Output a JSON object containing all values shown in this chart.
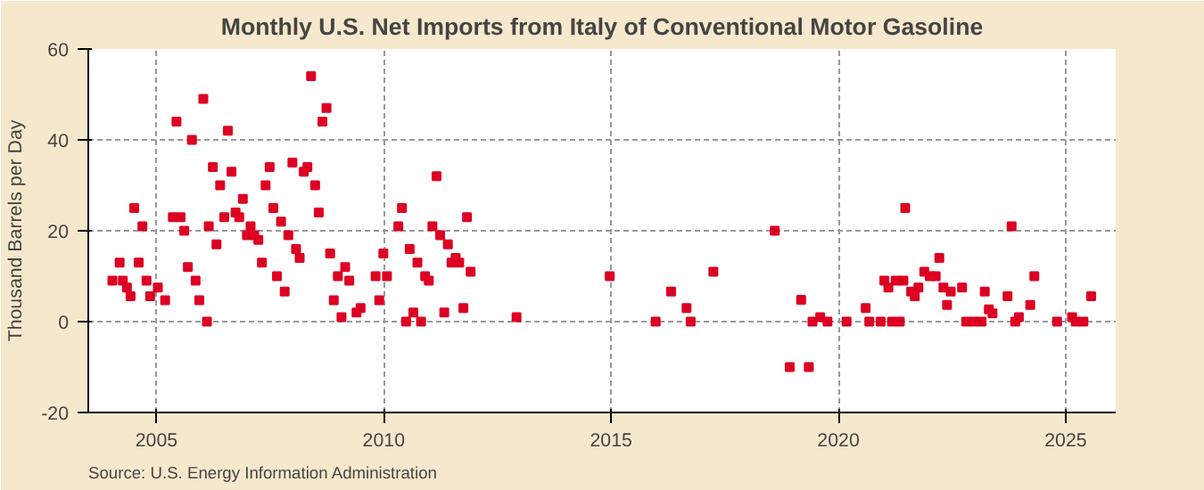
{
  "chart_data": {
    "type": "scatter",
    "title": "Monthly U.S. Net Imports from Italy of Conventional Motor Gasoline",
    "ylabel": "Thousand Barrels per Day",
    "annotations": [
      "Source: U.S. Energy Information Administration"
    ],
    "x": [
      2004.03,
      2004.19,
      2004.26,
      2004.35,
      2004.43,
      2004.51,
      2004.61,
      2004.69,
      2004.78,
      2004.86,
      2005.03,
      2005.19,
      2005.36,
      2005.44,
      2005.53,
      2005.61,
      2005.69,
      2005.78,
      2005.86,
      2005.94,
      2006.03,
      2006.11,
      2006.15,
      2006.24,
      2006.32,
      2006.4,
      2006.49,
      2006.57,
      2006.65,
      2006.74,
      2006.82,
      2006.9,
      2006.99,
      2007.07,
      2007.15,
      2007.24,
      2007.32,
      2007.4,
      2007.49,
      2007.57,
      2007.65,
      2007.74,
      2007.82,
      2007.9,
      2007.99,
      2008.07,
      2008.15,
      2008.24,
      2008.32,
      2008.4,
      2008.49,
      2008.57,
      2008.65,
      2008.74,
      2008.82,
      2008.9,
      2008.99,
      2009.07,
      2009.15,
      2009.24,
      2009.4,
      2009.49,
      2009.82,
      2009.9,
      2009.99,
      2010.07,
      2010.32,
      2010.4,
      2010.49,
      2010.57,
      2010.65,
      2010.74,
      2010.82,
      2010.91,
      2010.99,
      2011.07,
      2011.16,
      2011.24,
      2011.33,
      2011.41,
      2011.49,
      2011.58,
      2011.66,
      2011.75,
      2011.83,
      2011.91,
      2012.92,
      2014.97,
      2015.98,
      2016.32,
      2016.66,
      2016.75,
      2017.25,
      2018.6,
      2018.93,
      2019.18,
      2019.35,
      2019.43,
      2019.6,
      2019.76,
      2020.18,
      2020.6,
      2020.68,
      2020.93,
      2021.01,
      2021.1,
      2021.18,
      2021.26,
      2021.35,
      2021.43,
      2021.47,
      2021.6,
      2021.68,
      2021.76,
      2021.89,
      2022.01,
      2022.14,
      2022.22,
      2022.31,
      2022.39,
      2022.47,
      2022.72,
      2022.81,
      2022.98,
      2023.15,
      2023.22,
      2023.31,
      2023.39,
      2023.72,
      2023.81,
      2023.89,
      2023.97,
      2024.22,
      2024.31,
      2024.81,
      2025.14,
      2025.22,
      2025.39,
      2025.56
    ],
    "series": [
      {
        "color": "#dd0022",
        "values": [
          9,
          13,
          9,
          7.5,
          5.6,
          25,
          13,
          21,
          9,
          5.6,
          7.5,
          4.7,
          23,
          44,
          23,
          20,
          12,
          40,
          9,
          4.7,
          49,
          0,
          21,
          34,
          17,
          30,
          23,
          42,
          33,
          24,
          23,
          27,
          19,
          21,
          19,
          18,
          13,
          30,
          34,
          25,
          10,
          22,
          6.6,
          19,
          35,
          16,
          14,
          33,
          34,
          54,
          30,
          24,
          44,
          47,
          15,
          4.7,
          10,
          1,
          12,
          9,
          2,
          3,
          10,
          4.7,
          15,
          10,
          21,
          25,
          0,
          16,
          2,
          13,
          0,
          10,
          9,
          21,
          32,
          19,
          2,
          17,
          13,
          14,
          13,
          3,
          23,
          11,
          1,
          10,
          0,
          6.6,
          3,
          0,
          11,
          20,
          -10,
          4.8,
          -10,
          0,
          1,
          0,
          0,
          3,
          0,
          0,
          9,
          7.5,
          0,
          9,
          0,
          9,
          25,
          6.6,
          5.6,
          7.5,
          11,
          10,
          10,
          14,
          7.5,
          3.7,
          6.6,
          7.5,
          0,
          0,
          0,
          6.6,
          2.7,
          1.8,
          5.6,
          21,
          0,
          1,
          3.7,
          10,
          0,
          1,
          0,
          0,
          5.6
        ]
      }
    ],
    "xlim": [
      2003.5,
      2026.1
    ],
    "xticks": [
      2005,
      2010,
      2015,
      2020,
      2025
    ],
    "ylim": [
      -20,
      60
    ],
    "yticks": [
      -20,
      0,
      20,
      40,
      60
    ],
    "grid": true,
    "marker": "square"
  }
}
